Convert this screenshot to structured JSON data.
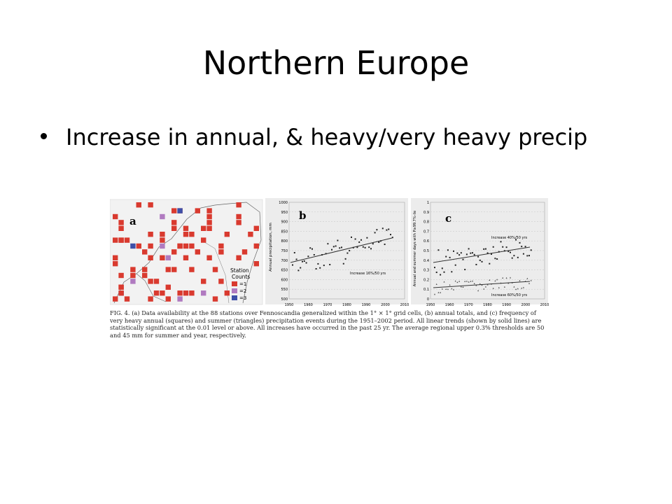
{
  "slide": {
    "title": "Northern Europe",
    "bullet": "Increase in annual, & heavy/very heavy precip"
  },
  "figure": {
    "panel_a": {
      "letter": "a",
      "legend_title_1": "Station",
      "legend_title_2": "Counts",
      "legend_items": [
        "=1",
        "=2",
        "=3"
      ],
      "colors": {
        "one": "#d93a2f",
        "two": "#b07ac0",
        "three": "#3d4fa8"
      }
    },
    "panel_b": {
      "letter": "b",
      "ylabel": "Annual precipitation, mm",
      "y_ticks": [
        "1000",
        "950",
        "900",
        "850",
        "800",
        "750",
        "700",
        "650",
        "600",
        "550",
        "500"
      ],
      "x_ticks": [
        "1950",
        "1960",
        "1970",
        "1980",
        "1990",
        "2000",
        "2010"
      ],
      "annotation": "Increase 16%/50 yrs"
    },
    "panel_c": {
      "letter": "c",
      "ylabel": "Annual and summer days with P≥99.7%-ile",
      "y_ticks": [
        "1",
        "0.9",
        "0.8",
        "0.7",
        "0.6",
        "0.5",
        "0.4",
        "0.3",
        "0.2",
        "0.1",
        "0"
      ],
      "x_ticks": [
        "1950",
        "1960",
        "1970",
        "1980",
        "1990",
        "2000",
        "2010"
      ],
      "annotation_top": "Increase 40%/50 yrs",
      "annotation_bottom": "Increase 60%/50 yrs"
    },
    "caption": "FIG. 4. (a) Data availability at the 88 stations over Fennoscandia generalized within the 1° × 1° grid cells, (b) annual totals, and (c) frequency of very heavy annual (squares) and summer (triangles) precipitation events during the 1951–2002 period. All linear trends (shown by solid lines) are statistically significant at the 0.01 level or above. All increases have occurred in the past 25 yr. The average regional upper 0.3% thresholds are 50 and 45 mm for summer and year, respectively."
  }
}
